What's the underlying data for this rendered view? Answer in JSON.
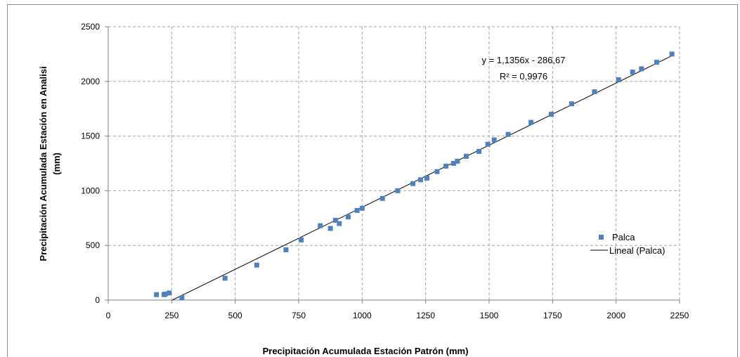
{
  "chart_data": {
    "type": "scatter",
    "xlabel": "Precipitación Acumulada Estación Patrón (mm)",
    "ylabel_lines": [
      "Precipitación Acumulada Estación en Analisi",
      "(mm)"
    ],
    "xlim": [
      0,
      2250
    ],
    "ylim": [
      0,
      2500
    ],
    "x_ticks": [
      0,
      250,
      500,
      750,
      1000,
      1250,
      1500,
      1750,
      2000,
      2250
    ],
    "y_ticks": [
      0,
      500,
      1000,
      1500,
      2000,
      2500
    ],
    "grid": "dashed",
    "legend_position": "right",
    "series": [
      {
        "name": "Palca",
        "marker": "square",
        "color": "#4f81bd",
        "points": [
          [
            190,
            50
          ],
          [
            220,
            50
          ],
          [
            225,
            55
          ],
          [
            240,
            65
          ],
          [
            290,
            20
          ],
          [
            460,
            200
          ],
          [
            585,
            320
          ],
          [
            700,
            460
          ],
          [
            760,
            550
          ],
          [
            835,
            680
          ],
          [
            875,
            655
          ],
          [
            895,
            730
          ],
          [
            910,
            700
          ],
          [
            945,
            760
          ],
          [
            980,
            820
          ],
          [
            1000,
            840
          ],
          [
            1080,
            930
          ],
          [
            1140,
            1000
          ],
          [
            1200,
            1065
          ],
          [
            1230,
            1100
          ],
          [
            1255,
            1115
          ],
          [
            1295,
            1175
          ],
          [
            1330,
            1225
          ],
          [
            1360,
            1250
          ],
          [
            1375,
            1270
          ],
          [
            1410,
            1315
          ],
          [
            1460,
            1360
          ],
          [
            1495,
            1425
          ],
          [
            1520,
            1465
          ],
          [
            1575,
            1515
          ],
          [
            1665,
            1625
          ],
          [
            1745,
            1700
          ],
          [
            1825,
            1795
          ],
          [
            1915,
            1905
          ],
          [
            2010,
            2015
          ],
          [
            2065,
            2085
          ],
          [
            2100,
            2115
          ],
          [
            2160,
            2175
          ],
          [
            2220,
            2250
          ]
        ]
      }
    ],
    "trendline": {
      "name": "Lineal (Palca)",
      "slope": 1.1356,
      "intercept": -286.67,
      "x_range": [
        252.4,
        2220
      ],
      "color": "#000000",
      "equation_text": "y = 1,1356x - 286,67",
      "r2_text": "R² = 0,9976"
    }
  }
}
